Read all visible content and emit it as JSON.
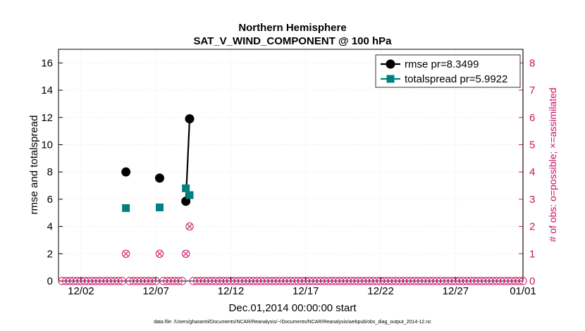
{
  "chart_data": {
    "type": "line",
    "title": "Northern Hemisphere",
    "subtitle": "SAT_V_WIND_COMPONENT @ 100 hPa",
    "xlabel": "Dec.01,2014 00:00:00 start",
    "ylabel": "rmse and totalspread",
    "ylabel_right": "# of obs: o=possible; ×=assimilated",
    "footnote": "data file: /Users/gharamti/Documents/NCAR/Reanalysis/~/Documents/NCAR/Reanalysis/webpub/obs_diag_output_2014-12.nc",
    "xlim": [
      0.5,
      31.5
    ],
    "ylim": [
      0,
      17
    ],
    "ylim_right": [
      0,
      8.5
    ],
    "x_ticks": [
      {
        "value": 2,
        "label": "12/02"
      },
      {
        "value": 7,
        "label": "12/07"
      },
      {
        "value": 12,
        "label": "12/12"
      },
      {
        "value": 17,
        "label": "12/17"
      },
      {
        "value": 22,
        "label": "12/22"
      },
      {
        "value": 27,
        "label": "12/27"
      },
      {
        "value": 32,
        "label": "01/01"
      }
    ],
    "y_ticks": [
      0,
      2,
      4,
      6,
      8,
      10,
      12,
      14,
      16
    ],
    "y_ticks_right": [
      0,
      1,
      2,
      3,
      4,
      5,
      6,
      7,
      8
    ],
    "series": [
      {
        "name": "rmse pr=8.3499",
        "color": "#000000",
        "marker": "circle",
        "points": [
          [
            5,
            8.0
          ],
          [
            7.25,
            7.55
          ],
          [
            9,
            5.85
          ],
          [
            9.25,
            11.9
          ]
        ],
        "connected": [
          [
            2,
            3
          ]
        ]
      },
      {
        "name": "totalspread pr=5.9922",
        "color": "#008080",
        "marker": "square",
        "points": [
          [
            5,
            5.35
          ],
          [
            7.25,
            5.4
          ],
          [
            9,
            6.8
          ],
          [
            9.25,
            6.3
          ]
        ],
        "connected": [
          [
            2,
            3
          ]
        ]
      }
    ],
    "obs_possible": {
      "color": "#cc1166",
      "x": [
        0.75,
        1,
        1.25,
        1.5,
        1.75,
        2,
        2.25,
        2.5,
        2.75,
        3,
        3.25,
        3.5,
        3.75,
        4,
        4.25,
        4.5,
        4.75,
        5,
        5.25,
        5.5,
        5.75,
        6,
        6.25,
        6.5,
        6.75,
        7,
        7.25,
        7.5,
        7.75,
        8,
        8.25,
        8.5,
        8.75,
        9,
        9.25,
        9.5,
        9.75,
        10,
        10.25,
        10.5,
        10.75,
        11,
        11.25,
        11.5,
        11.75,
        12,
        12.25,
        12.5,
        12.75,
        13,
        13.25,
        13.5,
        13.75,
        14,
        14.25,
        14.5,
        14.75,
        15,
        15.25,
        15.5,
        15.75,
        16,
        16.25,
        16.5,
        16.75,
        17,
        17.25,
        17.5,
        17.75,
        18,
        18.25,
        18.5,
        18.75,
        19,
        19.25,
        19.5,
        19.75,
        20,
        20.25,
        20.5,
        20.75,
        21,
        21.25,
        21.5,
        21.75,
        22,
        22.25,
        22.5,
        22.75,
        23,
        23.25,
        23.5,
        23.75,
        24,
        24.25,
        24.5,
        24.75,
        25,
        25.25,
        25.5,
        25.75,
        26,
        26.25,
        26.5,
        26.75,
        27,
        27.25,
        27.5,
        27.75,
        28,
        28.25,
        28.5,
        28.75,
        29,
        29.25,
        29.5,
        29.75,
        30,
        30.25,
        30.5,
        30.75,
        31,
        31.25,
        31.5
      ],
      "y": [
        0,
        0,
        0,
        0,
        0,
        0,
        0,
        0,
        0,
        0,
        0,
        0,
        0,
        0,
        0,
        0,
        0,
        1,
        0,
        0,
        0,
        0,
        0,
        0,
        0,
        0,
        1,
        0,
        0,
        0,
        0,
        0,
        0,
        1,
        2,
        0,
        0,
        0,
        0,
        0,
        0,
        0,
        0,
        0,
        0,
        0,
        0,
        0,
        0,
        0,
        0,
        0,
        0,
        0,
        0,
        0,
        0,
        0,
        0,
        0,
        0,
        0,
        0,
        0,
        0,
        0,
        0,
        0,
        0,
        0,
        0,
        0,
        0,
        0,
        0,
        0,
        0,
        0,
        0,
        0,
        0,
        0,
        0,
        0,
        0,
        0,
        0,
        0,
        0,
        0,
        0,
        0,
        0,
        0,
        0,
        0,
        0,
        0,
        0,
        0,
        0,
        0,
        0,
        0,
        0,
        0,
        0,
        0,
        0,
        0,
        0,
        0,
        0,
        0,
        0,
        0,
        0,
        0,
        0,
        0,
        0,
        0,
        0,
        0
      ]
    },
    "obs_assimilated": {
      "color": "#cc1166",
      "x": [
        5,
        7.25,
        9,
        9.25
      ],
      "y": [
        1,
        1,
        1,
        2
      ]
    },
    "legend_position": "top-right",
    "grid": true
  }
}
